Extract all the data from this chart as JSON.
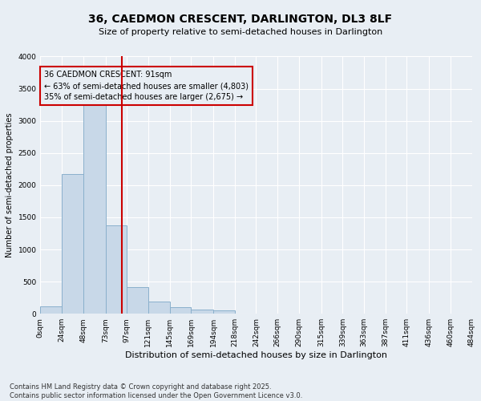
{
  "title1": "36, CAEDMON CRESCENT, DARLINGTON, DL3 8LF",
  "title2": "Size of property relative to semi-detached houses in Darlington",
  "xlabel": "Distribution of semi-detached houses by size in Darlington",
  "ylabel": "Number of semi-detached properties",
  "footer1": "Contains HM Land Registry data © Crown copyright and database right 2025.",
  "footer2": "Contains public sector information licensed under the Open Government Licence v3.0.",
  "annotation_title": "36 CAEDMON CRESCENT: 91sqm",
  "annotation_line1": "← 63% of semi-detached houses are smaller (4,803)",
  "annotation_line2": "35% of semi-detached houses are larger (2,675) →",
  "property_size": 91,
  "bar_color": "#c8d8e8",
  "bar_edgecolor": "#8ab0cc",
  "marker_color": "#cc0000",
  "background_color": "#e8eef4",
  "ylim": [
    0,
    4000
  ],
  "yticks": [
    0,
    500,
    1000,
    1500,
    2000,
    2500,
    3000,
    3500,
    4000
  ],
  "bins": [
    0,
    24,
    48,
    73,
    97,
    121,
    145,
    169,
    194,
    218,
    242,
    266,
    290,
    315,
    339,
    363,
    387,
    411,
    436,
    460,
    484
  ],
  "bin_labels": [
    "0sqm",
    "24sqm",
    "48sqm",
    "73sqm",
    "97sqm",
    "121sqm",
    "145sqm",
    "169sqm",
    "194sqm",
    "218sqm",
    "242sqm",
    "266sqm",
    "290sqm",
    "315sqm",
    "339sqm",
    "363sqm",
    "387sqm",
    "411sqm",
    "436sqm",
    "460sqm",
    "484sqm"
  ],
  "bar_heights": [
    120,
    2170,
    3240,
    1380,
    420,
    185,
    100,
    65,
    50,
    0,
    0,
    0,
    0,
    0,
    0,
    0,
    0,
    0,
    0,
    0
  ],
  "title1_fontsize": 10,
  "title2_fontsize": 8,
  "xlabel_fontsize": 8,
  "ylabel_fontsize": 7,
  "tick_fontsize": 6.5,
  "footer_fontsize": 6,
  "annotation_fontsize": 7
}
